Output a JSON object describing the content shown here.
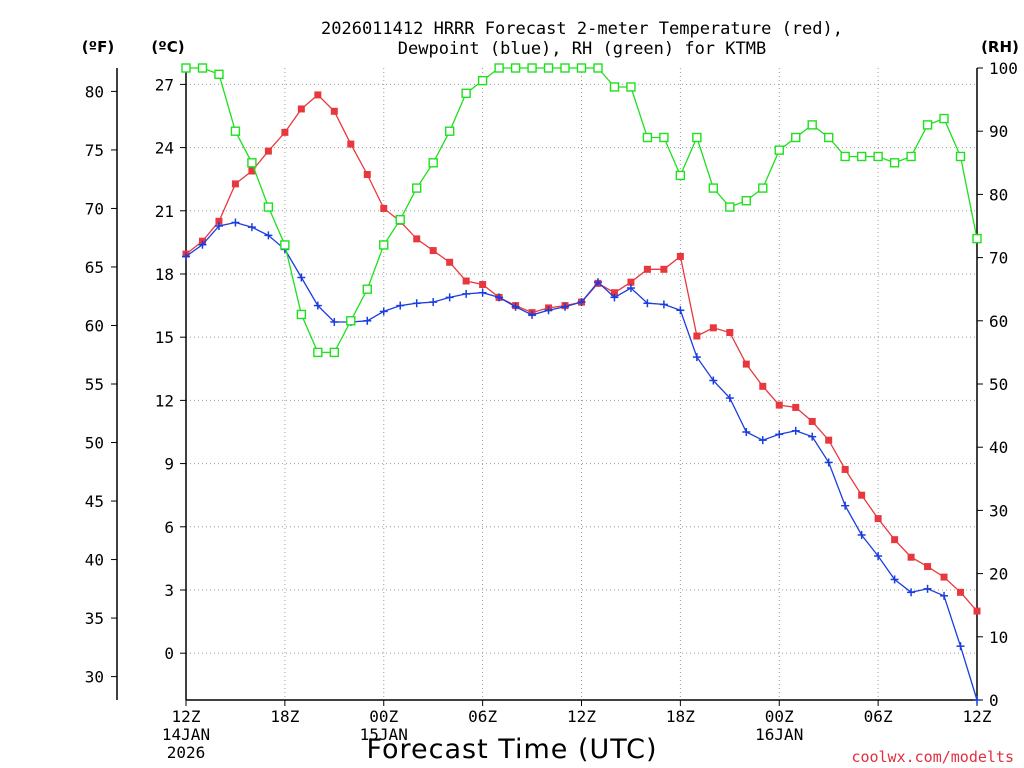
{
  "chart_data": {
    "type": "line",
    "title_line1": "2026011412 HRRR Forecast 2-meter Temperature (red),",
    "title_line2": "Dewpoint (blue), RH (green) for KTMB",
    "xlabel": "Forecast Time (UTC)",
    "credit": "coolwx.com/modelts",
    "unit_f": "(ºF)",
    "unit_c": "(ºC)",
    "unit_rh": "(RH)",
    "ylim_f": [
      28,
      82
    ],
    "ylim_rh": [
      0,
      100
    ],
    "c_ticks": [
      "0",
      "3",
      "6",
      "9",
      "12",
      "15",
      "18",
      "21",
      "24",
      "27"
    ],
    "f_ticks": [
      "30",
      "35",
      "40",
      "45",
      "50",
      "55",
      "60",
      "65",
      "70",
      "75",
      "80"
    ],
    "rh_ticks": [
      "0",
      "10",
      "20",
      "30",
      "40",
      "50",
      "60",
      "70",
      "80",
      "90",
      "100"
    ],
    "x_ticks": [
      {
        "hour": 0,
        "label": "12Z",
        "sub1": "14JAN",
        "sub2": "2026"
      },
      {
        "hour": 6,
        "label": "18Z"
      },
      {
        "hour": 12,
        "label": "00Z",
        "sub1": "15JAN"
      },
      {
        "hour": 18,
        "label": "06Z"
      },
      {
        "hour": 24,
        "label": "12Z"
      },
      {
        "hour": 30,
        "label": "18Z"
      },
      {
        "hour": 36,
        "label": "00Z",
        "sub1": "16JAN"
      },
      {
        "hour": 42,
        "label": "06Z"
      },
      {
        "hour": 48,
        "label": "12Z"
      }
    ],
    "hours": [
      0,
      1,
      2,
      3,
      4,
      5,
      6,
      7,
      8,
      9,
      10,
      11,
      12,
      13,
      14,
      15,
      16,
      17,
      18,
      19,
      20,
      21,
      22,
      23,
      24,
      25,
      26,
      27,
      28,
      29,
      30,
      31,
      32,
      33,
      34,
      35,
      36,
      37,
      38,
      39,
      40,
      41,
      42,
      43,
      44,
      45,
      46,
      47,
      48
    ],
    "series": [
      {
        "name": "Temperature (°F)",
        "color": "#e8383d",
        "marker": "filled-square",
        "values": [
          66.1,
          67.2,
          68.9,
          72.1,
          73.2,
          74.9,
          76.5,
          78.5,
          79.7,
          78.3,
          75.5,
          72.9,
          70.0,
          68.9,
          67.4,
          66.4,
          65.4,
          63.8,
          63.5,
          62.4,
          61.7,
          61.1,
          61.5,
          61.7,
          62.0,
          63.6,
          62.8,
          63.7,
          64.8,
          64.8,
          65.9,
          59.1,
          59.8,
          59.4,
          56.7,
          54.8,
          53.2,
          53.0,
          51.8,
          50.2,
          47.7,
          45.5,
          43.5,
          41.7,
          40.2,
          39.4,
          38.5,
          37.2,
          35.6
        ]
      },
      {
        "name": "Dewpoint (°F)",
        "color": "#1a3de0",
        "marker": "plus",
        "values": [
          65.9,
          66.9,
          68.5,
          68.8,
          68.4,
          67.7,
          66.5,
          64.1,
          61.7,
          60.3,
          60.3,
          60.4,
          61.2,
          61.7,
          61.9,
          62.0,
          62.4,
          62.7,
          62.8,
          62.4,
          61.6,
          60.9,
          61.3,
          61.6,
          62.0,
          63.7,
          62.4,
          63.2,
          61.9,
          61.8,
          61.3,
          57.3,
          55.3,
          53.8,
          50.9,
          50.2,
          50.7,
          51.0,
          50.5,
          48.3,
          44.6,
          42.1,
          40.3,
          38.3,
          37.2,
          37.5,
          36.9,
          32.6,
          26.8
        ]
      },
      {
        "name": "RH (%)",
        "color": "#1ee01e",
        "marker": "open-square",
        "values": [
          100,
          100,
          99,
          90,
          85,
          78,
          72,
          61,
          55,
          55,
          60,
          65,
          72,
          76,
          81,
          85,
          90,
          96,
          98,
          100,
          100,
          100,
          100,
          100,
          100,
          100,
          97,
          97,
          89,
          89,
          83,
          89,
          81,
          78,
          79,
          81,
          87,
          89,
          91,
          89,
          86,
          86,
          86,
          85,
          86,
          91,
          92,
          86,
          73
        ]
      }
    ]
  }
}
